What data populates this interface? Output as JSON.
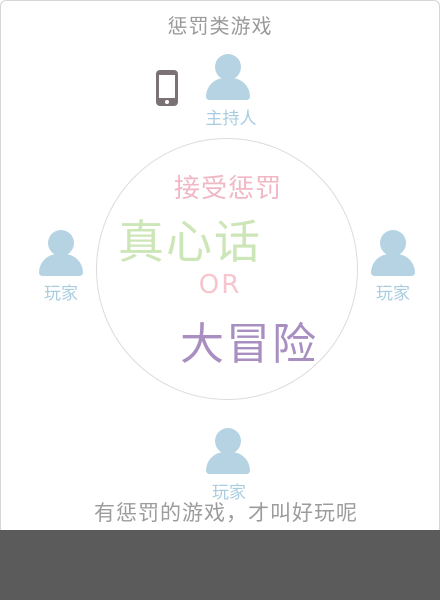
{
  "header": {
    "title": "惩罚类游戏"
  },
  "roles": {
    "host": "主持人",
    "left_player": "玩家",
    "right_player": "玩家",
    "bottom_player": "玩家"
  },
  "center": {
    "punish": "接受惩罚",
    "truth": "真心话",
    "or": "OR",
    "dare": "大冒险"
  },
  "tagline": "有惩罚的游戏，才叫好玩呢",
  "icons": {
    "player": "person-icon",
    "phone": "smartphone-icon"
  },
  "colors": {
    "player_icon": "#b5d3e3",
    "punish_text": "#f0b7c5",
    "truth_text": "#cde6b8",
    "or_text": "#f6c5ce",
    "dare_text": "#a98fc1",
    "footer_bar": "#5b5b5b"
  }
}
